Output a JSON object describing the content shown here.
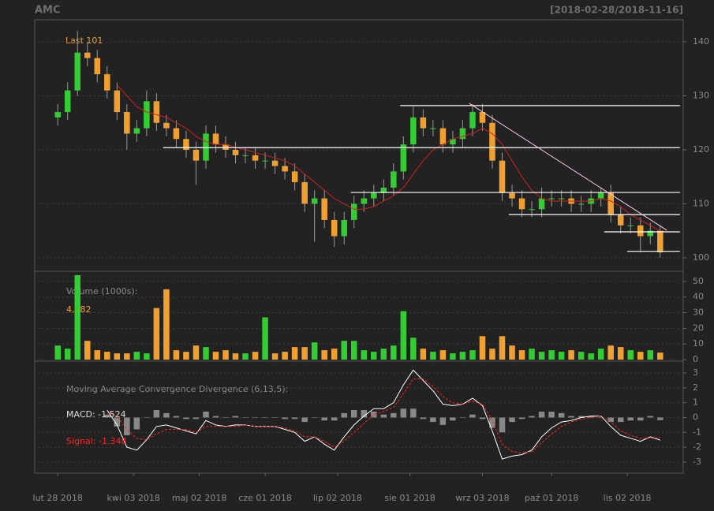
{
  "chart_data": [
    {
      "type": "candlestick",
      "title": "AMC",
      "subtitle": "[2018-02-28/2018-11-16]",
      "annotation": "Last 101",
      "x": [
        0,
        3,
        6,
        9,
        12,
        15,
        18,
        21,
        24,
        27,
        30,
        33,
        36,
        39,
        42,
        45,
        48,
        51,
        54,
        57,
        60,
        63,
        66,
        69,
        72,
        75,
        78,
        81,
        84,
        87,
        90,
        93,
        96,
        99,
        102,
        105,
        108,
        111,
        114,
        117,
        120,
        123,
        126,
        129,
        132,
        135,
        138,
        141,
        144,
        147,
        150,
        153,
        156,
        159,
        162,
        165,
        168,
        171,
        174,
        177,
        180,
        183
      ],
      "open": [
        126,
        127,
        131,
        138,
        137,
        134,
        131,
        127,
        123,
        124,
        129,
        125,
        124,
        122,
        120,
        118,
        123,
        121,
        120,
        119,
        119,
        118,
        118,
        117,
        116,
        114,
        110,
        111,
        107,
        104,
        107,
        110,
        111,
        112,
        113,
        116,
        121,
        126,
        124,
        124,
        121,
        122,
        124,
        127,
        125,
        118,
        112,
        111,
        109,
        109,
        111,
        111,
        111,
        110,
        110,
        111,
        112,
        108,
        106,
        106,
        104,
        105
      ],
      "high": [
        128.5,
        132.5,
        142,
        140,
        138.5,
        135.5,
        132.5,
        128.5,
        125.5,
        131,
        130.5,
        126.5,
        125.5,
        123.5,
        121.5,
        124.5,
        124.5,
        122.5,
        121.5,
        120.5,
        120.5,
        119.5,
        119.5,
        118.5,
        117.5,
        115.5,
        112.5,
        112.5,
        108.5,
        108.5,
        111.5,
        112.5,
        113.5,
        114.5,
        117.5,
        122.5,
        128,
        127.5,
        125.5,
        125.5,
        123.5,
        125.5,
        128.5,
        128.5,
        126.5,
        119.5,
        113.5,
        112.5,
        110.5,
        113,
        112.5,
        112.5,
        112.5,
        111.5,
        112.5,
        113,
        113.5,
        109.5,
        107.5,
        107.5,
        106.5,
        106
      ],
      "low": [
        124.5,
        125.5,
        130,
        135.5,
        132.5,
        129.5,
        125.5,
        120,
        121.5,
        122.5,
        123.5,
        122.5,
        120.5,
        118.5,
        113.5,
        116.5,
        119.5,
        118.5,
        117.5,
        117.5,
        116.5,
        116.5,
        115.5,
        114.5,
        112.5,
        108.5,
        103,
        105.5,
        102,
        102.5,
        105.5,
        108.5,
        109.5,
        110.5,
        111.5,
        114.5,
        119.5,
        122.5,
        122.5,
        119.5,
        119.5,
        120.5,
        122.5,
        123.5,
        116.5,
        110.5,
        109.5,
        107.5,
        107.5,
        107.5,
        109.5,
        109.5,
        108.5,
        108.5,
        108.5,
        109.5,
        106.5,
        104.5,
        104.5,
        101,
        102.5,
        100
      ],
      "close": [
        127,
        131,
        138,
        137,
        134,
        131,
        127,
        123,
        124,
        129,
        125,
        124,
        122,
        120,
        118,
        123,
        121,
        120,
        119,
        119,
        118,
        118,
        117,
        116,
        114,
        110,
        111,
        107,
        104,
        107,
        110,
        111,
        112,
        113,
        116,
        121,
        126,
        124,
        124,
        121,
        122,
        124,
        127,
        125,
        118,
        112,
        111,
        109,
        109,
        111,
        111,
        111,
        110,
        110,
        111,
        112,
        108,
        106,
        106,
        104,
        105,
        101
      ],
      "up_color": "#33cc33",
      "down_color": "#f0a030",
      "ma": {
        "color": "#cc2222",
        "values": [
          null,
          null,
          null,
          null,
          null,
          null,
          132,
          130,
          128,
          127,
          126.5,
          126,
          125,
          124,
          122.5,
          121.5,
          121,
          121,
          120.5,
          120,
          119.5,
          119,
          118.5,
          118,
          117,
          115.5,
          114,
          112.5,
          111,
          110,
          109,
          109,
          109.5,
          110.5,
          111.5,
          113,
          115.5,
          118,
          120,
          121,
          122,
          122.5,
          123,
          124,
          123,
          121,
          118,
          115,
          112.5,
          111,
          110.5,
          110.5,
          110.5,
          110.5,
          110.5,
          111,
          110.5,
          109.5,
          108,
          107,
          106,
          105
        ]
      },
      "hlines": [
        {
          "y": 128.2,
          "from": 104,
          "to": 189
        },
        {
          "y": 120.4,
          "from": 32,
          "to": 189
        },
        {
          "y": 112.1,
          "from": 89,
          "to": 189
        },
        {
          "y": 108,
          "from": 137,
          "to": 189
        },
        {
          "y": 104.8,
          "from": 166,
          "to": 189
        },
        {
          "y": 101.2,
          "from": 173,
          "to": 189
        }
      ],
      "trendline": {
        "x1": 125,
        "y1": 128.6,
        "x2": 185,
        "y2": 105.1,
        "color": "#ffccee"
      },
      "xlim": [
        -7,
        190
      ],
      "ylim": [
        97.5,
        144.1
      ],
      "yticks": [
        100,
        110,
        120,
        130,
        140
      ],
      "grid": true
    },
    {
      "type": "bar",
      "title": "Volume (1000s):",
      "annotation": "4,482",
      "x": [
        0,
        3,
        6,
        9,
        12,
        15,
        18,
        21,
        24,
        27,
        30,
        33,
        36,
        39,
        42,
        45,
        48,
        51,
        54,
        57,
        60,
        63,
        66,
        69,
        72,
        75,
        78,
        81,
        84,
        87,
        90,
        93,
        96,
        99,
        102,
        105,
        108,
        111,
        114,
        117,
        120,
        123,
        126,
        129,
        132,
        135,
        138,
        141,
        144,
        147,
        150,
        153,
        156,
        159,
        162,
        165,
        168,
        171,
        174,
        177,
        180,
        183
      ],
      "values": [
        9,
        7,
        54,
        12,
        6,
        5,
        4,
        4,
        5,
        4,
        33,
        45,
        6,
        5,
        9,
        8,
        5,
        6,
        4,
        4,
        5,
        27,
        4,
        5,
        8,
        8,
        11,
        6,
        7,
        12,
        12,
        6,
        5,
        7,
        9,
        31,
        14,
        7,
        5,
        6,
        4,
        5,
        6,
        15,
        7,
        15,
        9,
        6,
        7,
        5,
        6,
        5,
        6,
        5,
        4,
        7,
        9,
        8,
        6,
        5,
        6,
        4.48
      ],
      "up_color": "#33cc33",
      "down_color": "#f0a030",
      "xlim": [
        -7,
        190
      ],
      "ylim": [
        -1,
        56.5
      ],
      "yticks": [
        0,
        10,
        20,
        30,
        40,
        50
      ],
      "grid": true
    },
    {
      "type": "line",
      "title": "Moving Average Convergence Divergence (6,13,5):",
      "x": [
        0,
        3,
        6,
        9,
        12,
        15,
        18,
        21,
        24,
        27,
        30,
        33,
        36,
        39,
        42,
        45,
        48,
        51,
        54,
        57,
        60,
        63,
        66,
        69,
        72,
        75,
        78,
        81,
        84,
        87,
        90,
        93,
        96,
        99,
        102,
        105,
        108,
        111,
        114,
        117,
        120,
        123,
        126,
        129,
        132,
        135,
        138,
        141,
        144,
        147,
        150,
        153,
        156,
        159,
        162,
        165,
        168,
        171,
        174,
        177,
        180,
        183
      ],
      "series": [
        {
          "name": "MACD: -1.524",
          "color": "#ffffff",
          "values": [
            null,
            null,
            null,
            null,
            null,
            0.5,
            -0.5,
            -2.0,
            -2.2,
            -1.5,
            -0.6,
            -0.5,
            -0.7,
            -0.9,
            -1.1,
            -0.2,
            -0.5,
            -0.6,
            -0.5,
            -0.5,
            -0.6,
            -0.6,
            -0.6,
            -0.8,
            -1.0,
            -1.6,
            -1.3,
            -1.8,
            -2.2,
            -1.3,
            -0.5,
            0.1,
            0.6,
            0.6,
            1.0,
            2.2,
            3.2,
            2.5,
            1.8,
            0.9,
            0.8,
            0.9,
            1.3,
            0.8,
            -0.9,
            -2.8,
            -2.6,
            -2.5,
            -2.2,
            -1.3,
            -0.7,
            -0.3,
            -0.2,
            0.0,
            0.1,
            0.1,
            -0.6,
            -1.2,
            -1.4,
            -1.6,
            -1.3,
            -1.524
          ]
        },
        {
          "name": "Signal: -1.348",
          "color": "#ff2222",
          "values": [
            null,
            null,
            null,
            null,
            null,
            0.3,
            0.1,
            -0.8,
            -1.4,
            -1.5,
            -1.1,
            -0.8,
            -0.8,
            -0.8,
            -1.0,
            -0.6,
            -0.6,
            -0.6,
            -0.6,
            -0.5,
            -0.6,
            -0.6,
            -0.6,
            -0.7,
            -0.9,
            -1.3,
            -1.3,
            -1.6,
            -2.0,
            -1.6,
            -1.0,
            -0.4,
            0.2,
            0.4,
            0.7,
            1.6,
            2.6,
            2.6,
            2.1,
            1.4,
            1.0,
            0.9,
            1.1,
            0.9,
            -0.2,
            -1.8,
            -2.3,
            -2.4,
            -2.3,
            -1.7,
            -1.1,
            -0.6,
            -0.3,
            -0.1,
            0.0,
            0.1,
            -0.3,
            -0.9,
            -1.2,
            -1.4,
            -1.4,
            -1.348
          ]
        }
      ],
      "histogram": {
        "color": "#888888",
        "values": [
          null,
          null,
          null,
          null,
          null,
          0.2,
          -0.6,
          -1.2,
          -0.8,
          0,
          0.5,
          0.3,
          0.1,
          -0.1,
          -0.1,
          0.4,
          0.1,
          0,
          0.1,
          0,
          0,
          0,
          0,
          -0.1,
          -0.1,
          -0.3,
          0,
          -0.2,
          -0.2,
          0.3,
          0.5,
          0.5,
          0.4,
          0.2,
          0.3,
          0.6,
          0.6,
          -0.1,
          -0.3,
          -0.5,
          -0.2,
          0,
          0.2,
          -0.1,
          -0.7,
          -1.0,
          -0.3,
          -0.1,
          0.1,
          0.4,
          0.4,
          0.3,
          0.1,
          0.1,
          0.1,
          0,
          -0.3,
          -0.3,
          -0.2,
          -0.2,
          0.1,
          -0.176
        ]
      },
      "xlim": [
        -7,
        190
      ],
      "ylim": [
        -3.75,
        3.8
      ],
      "yticks": [
        -3,
        -2,
        -1,
        0,
        1,
        2,
        3
      ],
      "xticks": [
        {
          "value": 0,
          "label": "lut 28 2018"
        },
        {
          "value": 23,
          "label": "kwi 03 2018"
        },
        {
          "value": 43,
          "label": "maj 02 2018"
        },
        {
          "value": 63,
          "label": "cze 01 2018"
        },
        {
          "value": 85,
          "label": "lip 02 2018"
        },
        {
          "value": 107,
          "label": "sie 01 2018"
        },
        {
          "value": 129,
          "label": "wrz 03 2018"
        },
        {
          "value": 150,
          "label": "paź 01 2018"
        },
        {
          "value": 173,
          "label": "lis 02 2018"
        }
      ],
      "grid": true
    }
  ]
}
